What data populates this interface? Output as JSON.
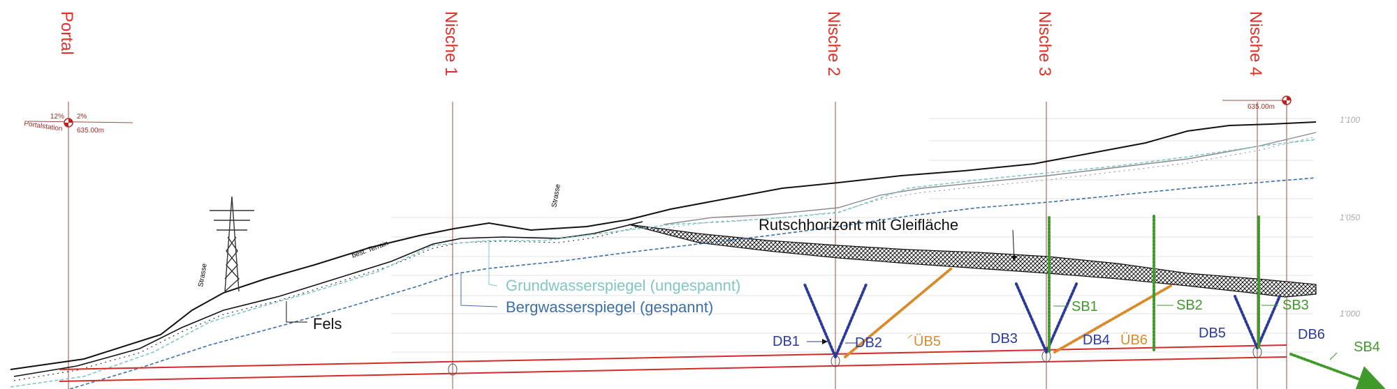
{
  "stations": [
    {
      "id": "portal",
      "label": "Portal"
    },
    {
      "id": "nische1",
      "label": "Nische 1"
    },
    {
      "id": "nische2",
      "label": "Nische 2"
    },
    {
      "id": "nische3",
      "label": "Nische 3"
    },
    {
      "id": "nische4",
      "label": "Nische 4"
    }
  ],
  "portal_marker": {
    "grade_left": "12%",
    "grade_right": "2%",
    "station_label": "Portalstation",
    "elevation": "635.00m"
  },
  "end_marker": {
    "elevation": "635.00m"
  },
  "elevation_ticks": [
    "1'100",
    "1'050",
    "1'000"
  ],
  "terrain_labels": {
    "strasse_1": "Strasse",
    "strasse_2": "Strasse",
    "terrain": "best. Terrain"
  },
  "labels": {
    "rutsch": "Rutschhorizont mit Gleifläche",
    "grundwasser": "Grundwasserspiegel (ungespannt)",
    "bergwasser": "Bergwasserspiegel (gespannt)",
    "fels": "Fels"
  },
  "boreholes": {
    "db1": "DB1",
    "db2": "DB2",
    "db3": "DB3",
    "db4": "DB4",
    "db5": "DB5",
    "db6": "DB6",
    "ub5": "ÜB5",
    "ub6": "ÜB6",
    "sb1": "SB1",
    "sb2": "SB2",
    "sb3": "SB3",
    "sb4": "SB4"
  },
  "colors": {
    "station": "#e0302a",
    "tunnel": "#d62a2a",
    "grundwasser": "#7fc7c4",
    "bergwasser": "#3a6fa8",
    "db": "#2a3a9a",
    "ub": "#d98a2b",
    "sb": "#3f9a2a",
    "terrain": "#111111"
  }
}
